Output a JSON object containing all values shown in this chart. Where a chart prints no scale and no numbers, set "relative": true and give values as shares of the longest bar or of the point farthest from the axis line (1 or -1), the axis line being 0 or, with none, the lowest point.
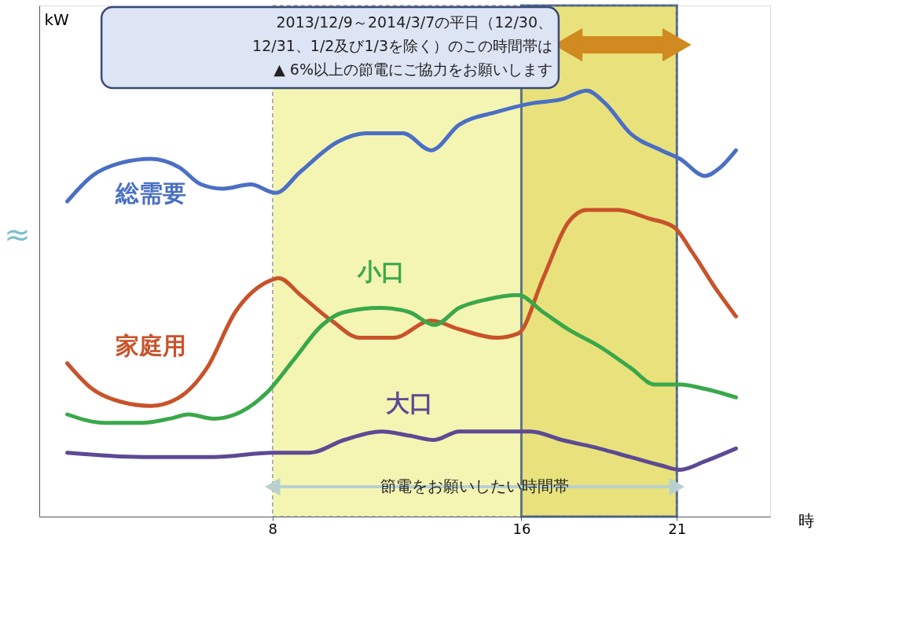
{
  "chart_data": {
    "type": "line",
    "relative": true,
    "xlabel": "時",
    "ylabel": "kW",
    "xlim": [
      0.5,
      24
    ],
    "xticks": [
      8,
      16,
      21
    ],
    "grid": false,
    "line_style": "solid",
    "marker": "none",
    "series": [
      {
        "name": "総需要",
        "color": "#4a6fc4",
        "x": [
          1.4,
          2.2,
          3.1,
          4.1,
          5,
          5.7,
          6.4,
          7.3,
          8.1,
          8.9,
          10.1,
          11,
          12.2,
          13.1,
          14,
          15.2,
          16.3,
          17.3,
          18.1,
          18.7,
          19.5,
          20.5,
          21.1,
          21.9,
          22.4,
          22.9
        ],
        "values": [
          0.74,
          0.8,
          0.83,
          0.84,
          0.82,
          0.78,
          0.77,
          0.78,
          0.76,
          0.81,
          0.88,
          0.9,
          0.9,
          0.86,
          0.92,
          0.95,
          0.97,
          0.98,
          1.0,
          0.97,
          0.9,
          0.86,
          0.84,
          0.8,
          0.82,
          0.86
        ]
      },
      {
        "name": "家庭用",
        "color": "#c8522a",
        "x": [
          1.4,
          2.2,
          3.1,
          4.1,
          5,
          5.9,
          6.8,
          7.8,
          8.2,
          8.9,
          9.9,
          10.8,
          11.9,
          13.1,
          14,
          15.2,
          15.9,
          16.7,
          17.5,
          18.1,
          19.1,
          20.1,
          20.9,
          21.5,
          22.3,
          22.9
        ],
        "values": [
          0.36,
          0.3,
          0.27,
          0.26,
          0.28,
          0.35,
          0.48,
          0.55,
          0.56,
          0.52,
          0.46,
          0.42,
          0.42,
          0.46,
          0.44,
          0.42,
          0.43,
          0.56,
          0.69,
          0.72,
          0.72,
          0.7,
          0.68,
          0.62,
          0.53,
          0.47
        ]
      },
      {
        "name": "小口",
        "color": "#3aa84a",
        "x": [
          1.4,
          2.6,
          3.8,
          4.7,
          5.3,
          6.1,
          6.8,
          7.8,
          8.7,
          9.6,
          10.3,
          11.5,
          12.4,
          13.2,
          14,
          14.9,
          15.9,
          16.7,
          17.5,
          18.5,
          19.5,
          20.3,
          21.1,
          21.9,
          22.9
        ],
        "values": [
          0.24,
          0.22,
          0.22,
          0.23,
          0.24,
          0.23,
          0.24,
          0.29,
          0.37,
          0.45,
          0.48,
          0.49,
          0.48,
          0.45,
          0.49,
          0.51,
          0.52,
          0.48,
          0.44,
          0.4,
          0.35,
          0.31,
          0.31,
          0.3,
          0.28
        ]
      },
      {
        "name": "大口",
        "color": "#5c4a94",
        "x": [
          1.4,
          3.8,
          6.1,
          8,
          9.2,
          10.3,
          11.5,
          12.4,
          13.2,
          14,
          15.2,
          16.3,
          17.3,
          18.5,
          19.5,
          20.5,
          21.1,
          21.9,
          22.9
        ],
        "values": [
          0.15,
          0.14,
          0.14,
          0.15,
          0.15,
          0.18,
          0.2,
          0.19,
          0.18,
          0.2,
          0.2,
          0.2,
          0.18,
          0.16,
          0.14,
          0.12,
          0.11,
          0.13,
          0.16
        ]
      }
    ],
    "bands": [
      {
        "axis": "x",
        "from": 8,
        "to": 21,
        "label": "節電をお願いしたい時間帯",
        "color": "#f2f29a"
      },
      {
        "axis": "x",
        "from": 16,
        "to": 21,
        "label": "2013/12/9～2014/3/7の平日（12/30、\n12/31、1/2及び1/3を除く）のこの時間帯は\n▲ 6%以上の節電にご協力をお願いします",
        "color": "#e6dc6a"
      }
    ],
    "annotations": [
      "≈"
    ]
  }
}
